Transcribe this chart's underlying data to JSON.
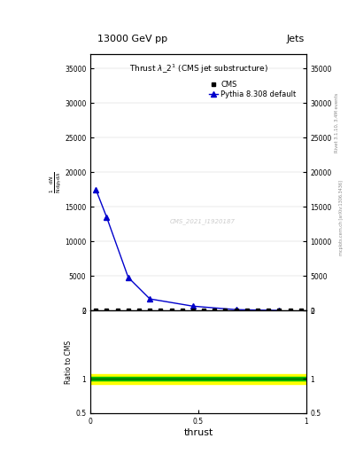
{
  "title_top": "13000 GeV pp",
  "title_right": "Jets",
  "plot_title": "Thrust $\\lambda$_2$^1$ (CMS jet substructure)",
  "cms_label": "CMS",
  "pythia_label": "Pythia 8.308 default",
  "watermark": "CMS_2021_I1920187",
  "rivet_label": "Rivet 3.1.10, 3.4M events",
  "mcplots_label": "mcplots.cern.ch [arXiv:1306.3436]",
  "ylabel_ratio": "Ratio to CMS",
  "xlabel": "thrust",
  "xlim": [
    0,
    1
  ],
  "ylim_main": [
    0,
    37000
  ],
  "ylim_ratio": [
    0.5,
    2
  ],
  "yticks_main": [
    0,
    5000,
    10000,
    15000,
    20000,
    25000,
    30000,
    35000
  ],
  "ytick_labels_main": [
    "0",
    "5000",
    "10000",
    "15000",
    "20000",
    "25000",
    "30000",
    "35000"
  ],
  "cms_x": [
    0.025,
    0.075,
    0.125,
    0.175,
    0.225,
    0.275,
    0.325,
    0.375,
    0.425,
    0.475,
    0.525,
    0.575,
    0.625,
    0.675,
    0.725,
    0.775,
    0.825,
    0.875,
    0.925,
    0.975
  ],
  "cms_y": [
    8,
    8,
    8,
    8,
    8,
    8,
    8,
    8,
    8,
    8,
    8,
    8,
    8,
    8,
    8,
    8,
    8,
    8,
    8,
    8
  ],
  "pythia_x": [
    0.025,
    0.075,
    0.175,
    0.275,
    0.475,
    0.675,
    0.875
  ],
  "pythia_y": [
    17500,
    13500,
    4800,
    1700,
    650,
    150,
    30
  ],
  "green_band_low": 0.975,
  "green_band_high": 1.025,
  "yellow_band_low": 0.93,
  "yellow_band_high": 1.07,
  "main_color": "#0000CC",
  "cms_color": "#000000",
  "green_color": "#00BB00",
  "yellow_color": "#FFFF00",
  "ratio_line_color": "#006600"
}
